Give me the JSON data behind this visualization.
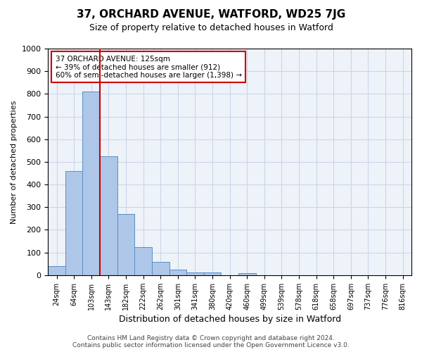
{
  "title": "37, ORCHARD AVENUE, WATFORD, WD25 7JG",
  "subtitle": "Size of property relative to detached houses in Watford",
  "xlabel": "Distribution of detached houses by size in Watford",
  "ylabel": "Number of detached properties",
  "bar_values": [
    40,
    460,
    810,
    525,
    270,
    125,
    57,
    25,
    12,
    12,
    0,
    8,
    0,
    0,
    0,
    0,
    0,
    0,
    0,
    0,
    0
  ],
  "bin_labels": [
    "24sqm",
    "64sqm",
    "103sqm",
    "143sqm",
    "182sqm",
    "222sqm",
    "262sqm",
    "301sqm",
    "341sqm",
    "380sqm",
    "420sqm",
    "460sqm",
    "499sqm",
    "539sqm",
    "578sqm",
    "618sqm",
    "658sqm",
    "697sqm",
    "737sqm",
    "776sqm",
    "816sqm"
  ],
  "bar_color": "#aec6e8",
  "bar_edge_color": "#5a8fc2",
  "vline_x_index": 2,
  "vline_color": "#cc0000",
  "ylim": [
    0,
    1000
  ],
  "yticks": [
    0,
    100,
    200,
    300,
    400,
    500,
    600,
    700,
    800,
    900,
    1000
  ],
  "annotation_text": "37 ORCHARD AVENUE: 125sqm\n← 39% of detached houses are smaller (912)\n60% of semi-detached houses are larger (1,398) →",
  "annotation_box_color": "#cc0000",
  "footer_line1": "Contains HM Land Registry data © Crown copyright and database right 2024.",
  "footer_line2": "Contains public sector information licensed under the Open Government Licence v3.0.",
  "bg_color": "#eef2f9",
  "grid_color": "#c8d4e8"
}
